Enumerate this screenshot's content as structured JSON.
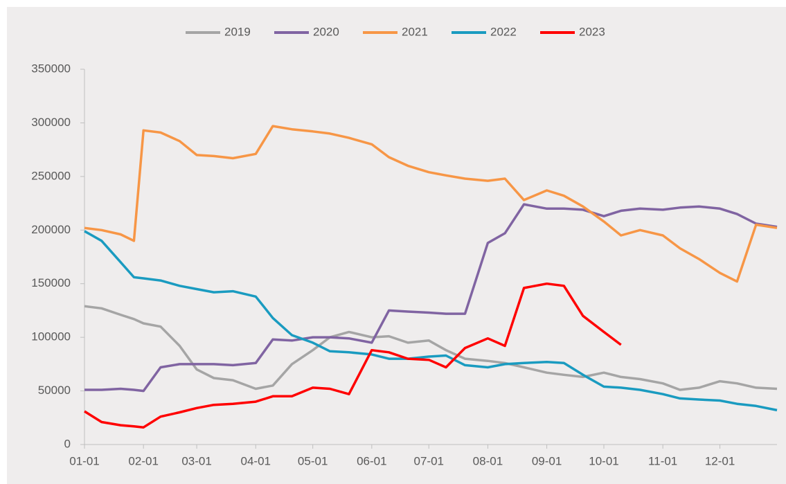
{
  "chart_data": {
    "type": "line",
    "x": [
      "01-01",
      "01-10",
      "01-20",
      "01-27",
      "02-01",
      "02-10",
      "02-20",
      "03-01",
      "03-10",
      "03-20",
      "04-01",
      "04-10",
      "04-20",
      "05-01",
      "05-10",
      "05-20",
      "06-01",
      "06-10",
      "06-20",
      "07-01",
      "07-10",
      "07-20",
      "08-01",
      "08-10",
      "08-20",
      "09-01",
      "09-10",
      "09-20",
      "10-01",
      "10-10",
      "10-20",
      "11-01",
      "11-10",
      "11-20",
      "12-01",
      "12-10",
      "12-20",
      "12-31"
    ],
    "xlim": [
      "01-01",
      "12-31"
    ],
    "xticks": [
      "01-01",
      "02-01",
      "03-01",
      "04-01",
      "05-01",
      "06-01",
      "07-01",
      "08-01",
      "09-01",
      "10-01",
      "11-01",
      "12-01"
    ],
    "ylim": [
      0,
      350000
    ],
    "yticks": [
      0,
      50000,
      100000,
      150000,
      200000,
      250000,
      300000,
      350000
    ],
    "legend": "top",
    "series": [
      {
        "name": "2019",
        "color": "#a5a5a5",
        "values": [
          129000,
          127000,
          121000,
          117000,
          113000,
          110000,
          92000,
          70000,
          62000,
          60000,
          52000,
          55000,
          75000,
          88000,
          100000,
          105000,
          100000,
          101000,
          95000,
          97000,
          88000,
          80000,
          78000,
          76000,
          72000,
          67000,
          65000,
          63000,
          67000,
          63000,
          61000,
          57000,
          51000,
          53000,
          59000,
          57000,
          53000,
          52000
        ]
      },
      {
        "name": "2020",
        "color": "#8064a2",
        "values": [
          51000,
          51000,
          52000,
          51000,
          50000,
          72000,
          75000,
          75000,
          75000,
          74000,
          76000,
          98000,
          97000,
          100000,
          100000,
          99000,
          95000,
          125000,
          124000,
          123000,
          122000,
          122000,
          188000,
          197000,
          224000,
          220000,
          220000,
          219000,
          213000,
          218000,
          220000,
          219000,
          221000,
          222000,
          220000,
          215000,
          206000,
          203000
        ]
      },
      {
        "name": "2021",
        "color": "#f79646",
        "values": [
          202000,
          200000,
          196000,
          190000,
          293000,
          291000,
          283000,
          270000,
          269000,
          267000,
          271000,
          297000,
          294000,
          292000,
          290000,
          286000,
          280000,
          268000,
          260000,
          254000,
          251000,
          248000,
          246000,
          248000,
          228000,
          237000,
          232000,
          222000,
          208000,
          195000,
          200000,
          195000,
          183000,
          173000,
          160000,
          152000,
          205000,
          202000
        ]
      },
      {
        "name": "2022",
        "color": "#1a9bc0",
        "values": [
          199000,
          190000,
          170000,
          156000,
          155000,
          153000,
          148000,
          145000,
          142000,
          143000,
          138000,
          118000,
          102000,
          95000,
          87000,
          86000,
          84000,
          80000,
          80000,
          82000,
          83000,
          74000,
          72000,
          75000,
          76000,
          77000,
          76000,
          65000,
          54000,
          53000,
          51000,
          47000,
          43000,
          42000,
          41000,
          38000,
          36000,
          32000
        ]
      },
      {
        "name": "2023",
        "color": "#ff0000",
        "values": [
          31000,
          21000,
          18000,
          17000,
          16000,
          26000,
          30000,
          34000,
          37000,
          38000,
          40000,
          45000,
          45000,
          53000,
          52000,
          47000,
          88000,
          86000,
          80000,
          79000,
          72000,
          90000,
          99000,
          92000,
          146000,
          150000,
          148000,
          120000,
          105000,
          93000,
          null,
          null,
          null,
          null,
          null,
          null,
          null,
          null
        ]
      }
    ]
  }
}
